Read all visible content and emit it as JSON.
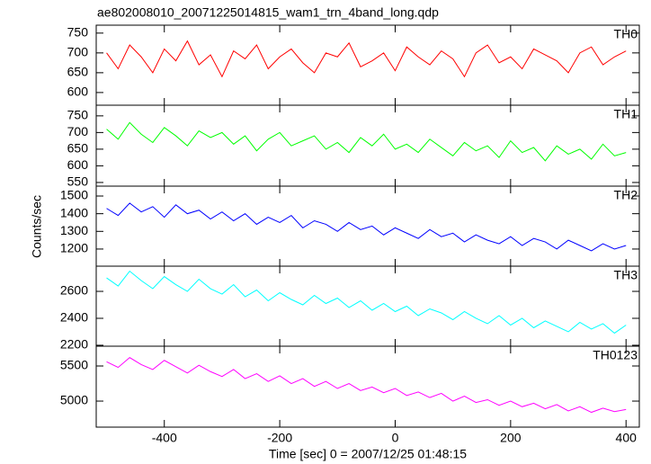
{
  "chart_data": {
    "type": "line",
    "title": "ae802008010_20071225014815_wam1_trn_4band_long.qdp",
    "x_label": "Time [sec] 0 = 2007/12/25 01:48:15",
    "y_label": "Counts/sec",
    "xlim": [
      -518,
      423
    ],
    "xticks": [
      -400,
      -200,
      0,
      200,
      400
    ],
    "x": [
      -500,
      -480,
      -460,
      -440,
      -420,
      -400,
      -380,
      -360,
      -340,
      -320,
      -300,
      -280,
      -260,
      -240,
      -220,
      -200,
      -180,
      -160,
      -140,
      -120,
      -100,
      -80,
      -60,
      -40,
      -20,
      0,
      20,
      40,
      60,
      80,
      100,
      120,
      140,
      160,
      180,
      200,
      220,
      240,
      260,
      280,
      300,
      320,
      340,
      360,
      380,
      400
    ],
    "panels": [
      {
        "name": "TH0",
        "color": "#ff0000",
        "ylim": [
          568,
          770
        ],
        "yticks": [
          600,
          650,
          700,
          750
        ],
        "values": [
          700,
          660,
          720,
          690,
          650,
          710,
          680,
          730,
          670,
          695,
          640,
          705,
          685,
          720,
          660,
          690,
          710,
          675,
          650,
          700,
          690,
          725,
          665,
          680,
          700,
          655,
          715,
          690,
          670,
          705,
          685,
          640,
          700,
          720,
          675,
          690,
          660,
          710,
          695,
          680,
          650,
          700,
          715,
          670,
          690,
          705
        ]
      },
      {
        "name": "TH1",
        "color": "#00ff00",
        "ylim": [
          539,
          782
        ],
        "yticks": [
          550,
          600,
          650,
          700,
          750
        ],
        "values": [
          710,
          680,
          730,
          695,
          670,
          715,
          690,
          660,
          705,
          685,
          700,
          665,
          690,
          645,
          680,
          700,
          660,
          675,
          690,
          650,
          670,
          640,
          685,
          660,
          695,
          650,
          665,
          640,
          680,
          655,
          630,
          670,
          645,
          660,
          625,
          675,
          640,
          655,
          615,
          660,
          635,
          650,
          620,
          665,
          630,
          640
        ]
      },
      {
        "name": "TH2",
        "color": "#0000ff",
        "ylim": [
          1103,
          1556
        ],
        "yticks": [
          1200,
          1300,
          1400,
          1500
        ],
        "values": [
          1430,
          1390,
          1460,
          1410,
          1440,
          1380,
          1450,
          1400,
          1420,
          1370,
          1410,
          1360,
          1400,
          1340,
          1380,
          1350,
          1390,
          1320,
          1360,
          1340,
          1300,
          1350,
          1310,
          1330,
          1280,
          1320,
          1290,
          1260,
          1310,
          1270,
          1290,
          1240,
          1280,
          1250,
          1230,
          1270,
          1220,
          1260,
          1240,
          1200,
          1250,
          1220,
          1190,
          1230,
          1200,
          1220
        ]
      },
      {
        "name": "TH3",
        "color": "#00ffff",
        "ylim": [
          2193,
          2787
        ],
        "yticks": [
          2200,
          2400,
          2600
        ],
        "values": [
          2700,
          2640,
          2750,
          2680,
          2620,
          2710,
          2650,
          2600,
          2690,
          2620,
          2580,
          2650,
          2560,
          2610,
          2530,
          2590,
          2540,
          2500,
          2570,
          2510,
          2550,
          2480,
          2530,
          2460,
          2510,
          2450,
          2490,
          2420,
          2470,
          2440,
          2390,
          2450,
          2400,
          2360,
          2420,
          2350,
          2400,
          2330,
          2380,
          2340,
          2300,
          2370,
          2320,
          2360,
          2290,
          2350
        ]
      },
      {
        "name": "TH0123",
        "color": "#ff00ff",
        "ylim": [
          4629,
          5782
        ],
        "yticks": [
          5000,
          5500
        ],
        "values": [
          5560,
          5480,
          5620,
          5520,
          5450,
          5580,
          5490,
          5400,
          5510,
          5420,
          5350,
          5450,
          5320,
          5390,
          5280,
          5360,
          5250,
          5320,
          5210,
          5280,
          5180,
          5250,
          5150,
          5200,
          5120,
          5180,
          5080,
          5130,
          5050,
          5110,
          5000,
          5070,
          4980,
          5020,
          4940,
          5000,
          4920,
          4970,
          4890,
          4950,
          4860,
          4920,
          4840,
          4900,
          4850,
          4880
        ]
      }
    ]
  }
}
